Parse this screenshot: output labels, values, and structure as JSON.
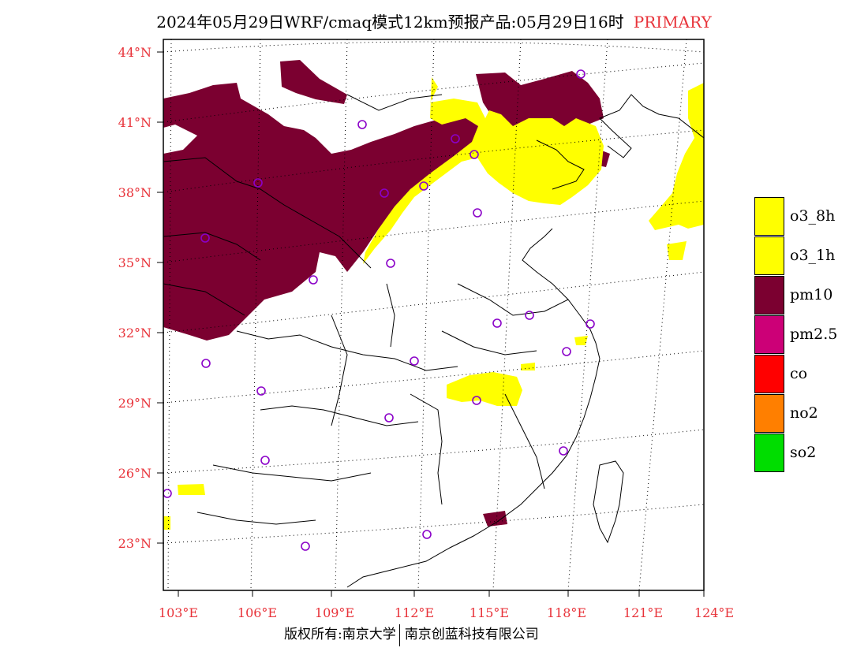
{
  "title": {
    "main": "2024年05月29日WRF/cmaq模式12km预报产品:05月29日16时",
    "tag": "PRIMARY"
  },
  "axes": {
    "lat_labels": [
      "44°N",
      "41°N",
      "38°N",
      "35°N",
      "32°N",
      "29°N",
      "26°N",
      "23°N"
    ],
    "lon_labels": [
      "103°E",
      "106°E",
      "109°E",
      "112°E",
      "115°E",
      "118°E",
      "121°E",
      "124°E"
    ],
    "label_color": "#e8333a"
  },
  "legend": [
    {
      "label": "o3_8h",
      "color": "#ffff00"
    },
    {
      "label": "o3_1h",
      "color": "#ffff00"
    },
    {
      "label": "pm10",
      "color": "#7b0030"
    },
    {
      "label": "pm2.5",
      "color": "#cc0077"
    },
    {
      "label": "co",
      "color": "#ff0000"
    },
    {
      "label": "no2",
      "color": "#ff7f00"
    },
    {
      "label": "so2",
      "color": "#00dd00"
    }
  ],
  "footer": {
    "left": "版权所有:南京大学",
    "right": "南京创蓝科技有限公司"
  },
  "colors": {
    "pm10": "#7b0030",
    "o3": "#ffff00",
    "station": "#8a00c8"
  }
}
